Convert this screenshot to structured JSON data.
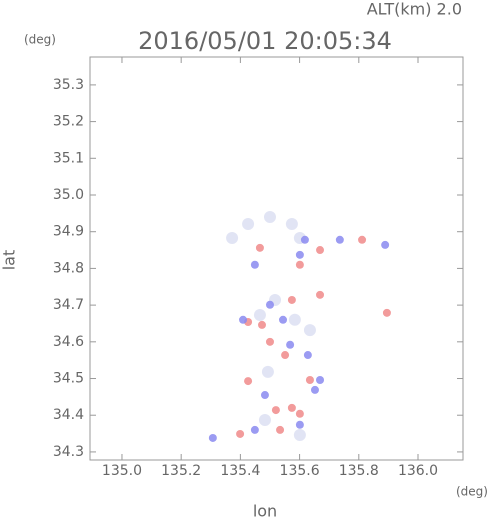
{
  "chart_data": {
    "type": "scatter",
    "altitude_label": "ALT(km) 2.0",
    "title": "2016/05/01 20:05:34",
    "y_unit": "(deg)",
    "x_unit": "(deg)",
    "ylabel": "lat",
    "xlabel": "lon",
    "xlim": [
      134.892,
      136.152
    ],
    "ylim": [
      34.278,
      35.376
    ],
    "xticks": [
      {
        "value": 135,
        "label": "135.0"
      },
      135.2,
      135.4,
      135.6,
      135.8,
      {
        "value": 136,
        "label": "136.0"
      }
    ],
    "yticks": [
      34.3,
      34.4,
      34.5,
      34.6,
      34.7,
      34.8,
      34.9,
      {
        "value": 35,
        "label": "35.0"
      },
      35.1,
      35.2,
      35.3
    ],
    "series": [
      {
        "color": "#dcdff2",
        "x": [
          135.372,
          135.426,
          135.5,
          135.574,
          135.601,
          135.517,
          135.466,
          135.584,
          135.493,
          135.483,
          135.601,
          135.635
        ],
        "values": [
          34.883,
          34.921,
          34.94,
          34.921,
          34.883,
          34.714,
          34.673,
          34.66,
          34.518,
          34.387,
          34.346,
          34.632
        ]
      },
      {
        "color": "#f08a8a",
        "x": [
          135.426,
          135.5,
          135.473,
          135.551,
          135.574,
          135.601,
          135.52,
          135.399,
          135.669,
          135.811,
          135.895,
          135.466,
          135.601,
          135.669,
          135.426,
          135.635,
          135.574,
          135.534
        ],
        "values": [
          34.493,
          34.6,
          34.646,
          34.564,
          34.42,
          34.404,
          34.414,
          34.349,
          34.85,
          34.878,
          34.679,
          34.856,
          34.81,
          34.728,
          34.654,
          34.496,
          34.714,
          34.36
        ]
      },
      {
        "color": "#8a8af0",
        "x": [
          135.307,
          135.618,
          135.736,
          135.544,
          135.568,
          135.409,
          135.483,
          135.601,
          135.449,
          135.601,
          135.889,
          135.669,
          135.628,
          135.5,
          135.449,
          135.652
        ],
        "values": [
          34.338,
          34.878,
          34.878,
          34.66,
          34.592,
          34.66,
          34.455,
          34.374,
          34.36,
          34.837,
          34.864,
          34.496,
          34.564,
          34.701,
          34.81,
          34.469
        ]
      }
    ]
  }
}
